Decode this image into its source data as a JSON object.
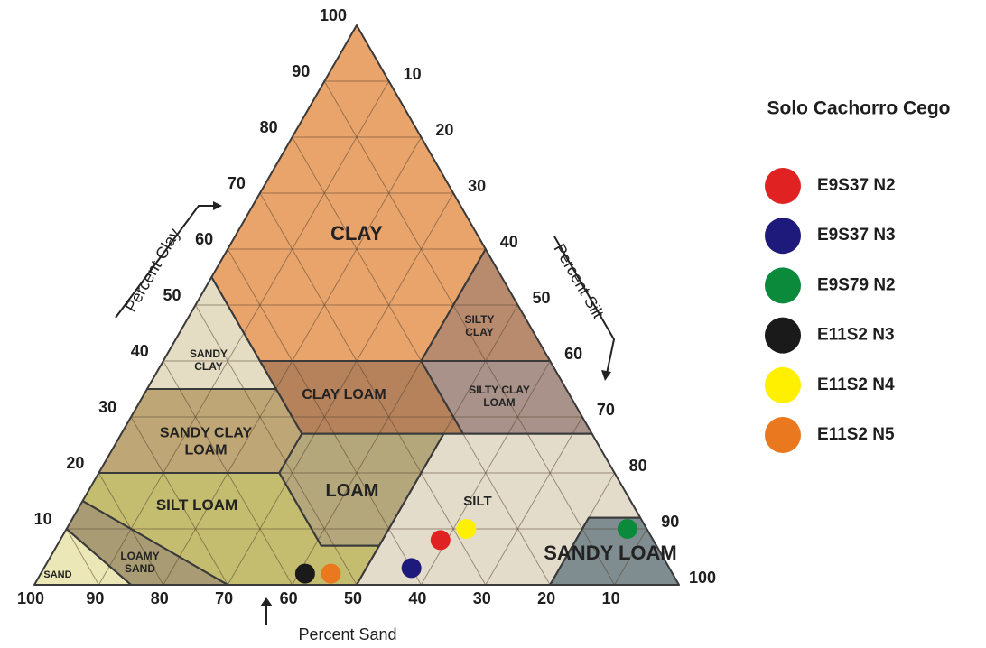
{
  "chart_data": {
    "type": "ternary",
    "legend_title": "Solo Cachorro Cego",
    "axes": {
      "clay": {
        "label": "Percent Clay",
        "ticks": [
          10,
          20,
          30,
          40,
          50,
          60,
          70,
          80,
          90,
          100
        ]
      },
      "silt": {
        "label": "Percent Silt",
        "ticks": [
          10,
          20,
          30,
          40,
          50,
          60,
          70,
          80,
          90,
          100
        ]
      },
      "sand": {
        "label": "Percent Sand",
        "ticks": [
          100,
          90,
          80,
          70,
          60,
          50,
          40,
          30,
          20,
          10
        ]
      }
    },
    "grid": true,
    "regions": [
      {
        "name": [
          "CLAY"
        ],
        "color": "#e9a46c"
      },
      {
        "name": [
          "SILTY",
          "CLAY"
        ],
        "color": "#b98b6e"
      },
      {
        "name": [
          "SANDY",
          "CLAY"
        ],
        "color": "#e4ddc3"
      },
      {
        "name": [
          "CLAY LOAM"
        ],
        "color": "#b5825c"
      },
      {
        "name": [
          "SILTY CLAY",
          "LOAM"
        ],
        "color": "#a89289"
      },
      {
        "name": [
          "SANDY CLAY",
          "LOAM"
        ],
        "color": "#bea676"
      },
      {
        "name": [
          "LOAM"
        ],
        "color": "#b4a77b"
      },
      {
        "name": [
          "SILT LOAM"
        ],
        "color": "#e4dccb"
      },
      {
        "name": [
          "SILT"
        ],
        "color": "#7f8c90"
      },
      {
        "name": [
          "SANDY LOAM"
        ],
        "color": "#c4bd70"
      },
      {
        "name": [
          "LOAMY",
          "SAND"
        ],
        "color": "#a99c74"
      },
      {
        "name": [
          "SAND"
        ],
        "color": "#ece7b6"
      }
    ],
    "series": [
      {
        "name": "E9S37 N2",
        "color": "#e02222",
        "sand": 33,
        "silt": 59,
        "clay": 8
      },
      {
        "name": "E9S37 N3",
        "color": "#1d1a7c",
        "sand": 40,
        "silt": 57,
        "clay": 3
      },
      {
        "name": "E9S79 N2",
        "color": "#0b8a3c",
        "sand": 3,
        "silt": 87,
        "clay": 10
      },
      {
        "name": "E11S2 N3",
        "color": "#1a1a1a",
        "sand": 57,
        "silt": 41,
        "clay": 2
      },
      {
        "name": "E11S2 N4",
        "color": "#fff000",
        "sand": 28,
        "silt": 62,
        "clay": 10
      },
      {
        "name": "E11S2 N5",
        "color": "#e9781e",
        "sand": 53,
        "silt": 45,
        "clay": 2
      }
    ]
  }
}
